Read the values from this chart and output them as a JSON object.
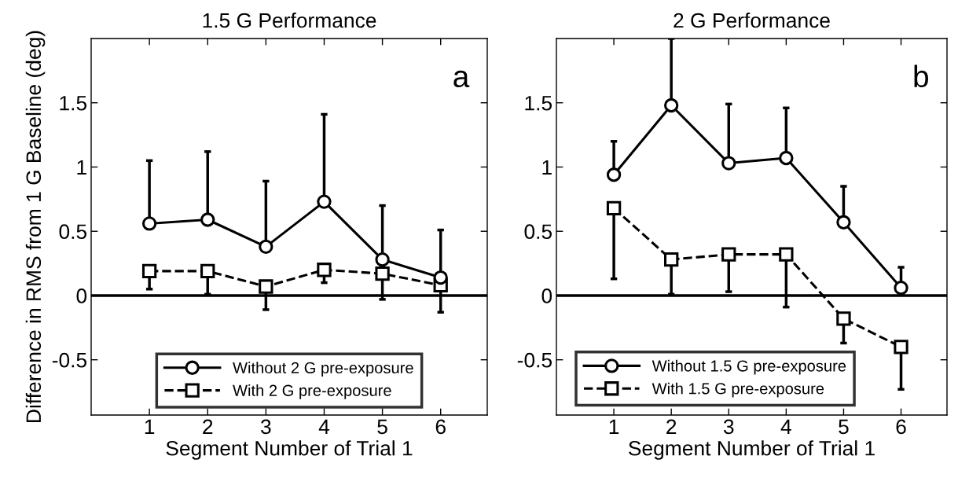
{
  "chart_data": [
    {
      "type": "line",
      "title": "1.5 G Performance",
      "xlabel": "Segment Number of Trial 1",
      "ylabel": "Difference in RMS from 1 G Baseline (deg)",
      "x": [
        1,
        2,
        3,
        4,
        5,
        6
      ],
      "xlim": [
        0,
        6.8
      ],
      "xticks": [
        1,
        2,
        3,
        4,
        5,
        6
      ],
      "ylim": [
        -0.93,
        2
      ],
      "yticks": [
        -0.5,
        0,
        0.5,
        1,
        1.5
      ],
      "series": [
        {
          "name": "Without 2 G pre-exposure",
          "color": "#000000",
          "marker": "circle",
          "line_style": "solid",
          "values": [
            0.56,
            0.59,
            0.38,
            0.73,
            0.28,
            0.14
          ],
          "errors": [
            [
              0.56,
              1.05
            ],
            [
              0.59,
              1.12
            ],
            [
              0.38,
              0.89
            ],
            [
              0.73,
              1.41
            ],
            [
              0.28,
              0.7
            ],
            [
              0.14,
              0.51
            ]
          ]
        },
        {
          "name": "With 2 G pre-exposure",
          "color": "#000000",
          "marker": "square",
          "line_style": "dashed",
          "values": [
            0.19,
            0.19,
            0.07,
            0.2,
            0.17,
            0.08
          ],
          "errors": [
            [
              0.05,
              0.19
            ],
            [
              0.01,
              0.19
            ],
            [
              -0.11,
              0.07
            ],
            [
              0.1,
              0.2
            ],
            [
              -0.03,
              0.17
            ],
            [
              -0.13,
              0.08
            ]
          ]
        }
      ],
      "ref_lines": [
        {
          "axis": "y",
          "value": 0,
          "color": "#000000"
        }
      ],
      "annotations": [
        "a"
      ],
      "legend": "bottom",
      "grid": false
    },
    {
      "type": "line",
      "title": "2 G Performance",
      "xlabel": "Segment Number of Trial 1",
      "x": [
        1,
        2,
        3,
        4,
        5,
        6
      ],
      "xlim": [
        0,
        6.8
      ],
      "xticks": [
        1,
        2,
        3,
        4,
        5,
        6
      ],
      "ylim": [
        -0.93,
        2
      ],
      "yticks": [
        -0.5,
        0,
        0.5,
        1,
        1.5
      ],
      "series": [
        {
          "name": "Without 1.5 G pre-exposure",
          "color": "#000000",
          "marker": "circle",
          "line_style": "solid",
          "values": [
            0.94,
            1.48,
            1.03,
            1.07,
            0.57,
            0.06
          ],
          "errors": [
            [
              0.94,
              1.2
            ],
            [
              1.48,
              2
            ],
            [
              1.03,
              1.49
            ],
            [
              1.07,
              1.46
            ],
            [
              0.57,
              0.85
            ],
            [
              0.06,
              0.22
            ]
          ]
        },
        {
          "name": "With 1.5 G pre-exposure",
          "color": "#000000",
          "marker": "square",
          "line_style": "dashed",
          "values": [
            0.68,
            0.28,
            0.32,
            0.32,
            -0.18,
            -0.4
          ],
          "errors": [
            [
              0.13,
              0.68
            ],
            [
              0.01,
              0.28
            ],
            [
              0.03,
              0.32
            ],
            [
              -0.09,
              0.32
            ],
            [
              -0.37,
              -0.18
            ],
            [
              -0.73,
              -0.4
            ]
          ]
        }
      ],
      "ref_lines": [
        {
          "axis": "y",
          "value": 0,
          "color": "#000000"
        }
      ],
      "annotations": [
        "b"
      ],
      "legend": "bottom left",
      "grid": false
    }
  ]
}
